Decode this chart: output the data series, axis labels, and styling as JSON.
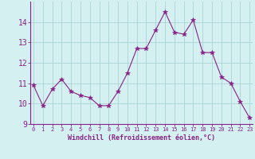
{
  "hours": [
    0,
    1,
    2,
    3,
    4,
    5,
    6,
    7,
    8,
    9,
    10,
    11,
    12,
    13,
    14,
    15,
    16,
    17,
    18,
    19,
    20,
    21,
    22,
    23
  ],
  "values": [
    10.9,
    9.9,
    10.7,
    11.2,
    10.6,
    10.4,
    10.3,
    9.9,
    9.9,
    10.6,
    11.5,
    12.7,
    12.7,
    13.6,
    14.5,
    13.5,
    13.4,
    14.1,
    12.5,
    12.5,
    11.3,
    11.0,
    10.1,
    9.3
  ],
  "line_color": "#882288",
  "marker": "*",
  "marker_size": 4,
  "bg_color": "#d4f0f0",
  "grid_color": "#aad4d4",
  "xlabel": "Windchill (Refroidissement éolien,°C)",
  "ylim": [
    9,
    15
  ],
  "yticks": [
    9,
    10,
    11,
    12,
    13,
    14
  ],
  "tick_color": "#882288",
  "label_color": "#882288",
  "axis_color": "#882288",
  "font_name": "monospace",
  "ytick_fontsize": 7,
  "xtick_fontsize": 5,
  "xlabel_fontsize": 6
}
